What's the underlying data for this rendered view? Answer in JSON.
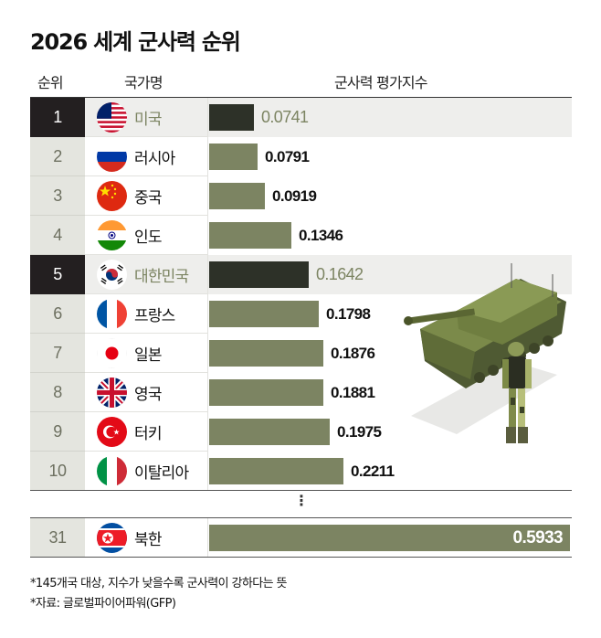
{
  "title": "2026 세계 군사력 순위",
  "headers": {
    "rank": "순위",
    "country": "국가명",
    "index": "군사력 평가지수"
  },
  "colors": {
    "bar": "#7c8462",
    "bar_highlight": "#2d3128",
    "rank_bg": "#e4e5df",
    "rank_highlight_bg": "#231f20",
    "row_highlight_bg": "#eeeeec",
    "value_highlight": "#7c8462"
  },
  "rows": [
    {
      "rank": "1",
      "country": "미국",
      "flag": "usa-flag",
      "value": 0.0741,
      "label": "0.0741",
      "highlight": true
    },
    {
      "rank": "2",
      "country": "러시아",
      "flag": "russia-flag",
      "value": 0.0791,
      "label": "0.0791",
      "highlight": false
    },
    {
      "rank": "3",
      "country": "중국",
      "flag": "china-flag",
      "value": 0.0919,
      "label": "0.0919",
      "highlight": false
    },
    {
      "rank": "4",
      "country": "인도",
      "flag": "india-flag",
      "value": 0.1346,
      "label": "0.1346",
      "highlight": false
    },
    {
      "rank": "5",
      "country": "대한민국",
      "flag": "south-korea-flag",
      "value": 0.1642,
      "label": "0.1642",
      "highlight": true
    },
    {
      "rank": "6",
      "country": "프랑스",
      "flag": "france-flag",
      "value": 0.1798,
      "label": "0.1798",
      "highlight": false
    },
    {
      "rank": "7",
      "country": "일본",
      "flag": "japan-flag",
      "value": 0.1876,
      "label": "0.1876",
      "highlight": false
    },
    {
      "rank": "8",
      "country": "영국",
      "flag": "uk-flag",
      "value": 0.1881,
      "label": "0.1881",
      "highlight": false
    },
    {
      "rank": "9",
      "country": "터키",
      "flag": "turkey-flag",
      "value": 0.1975,
      "label": "0.1975",
      "highlight": false
    },
    {
      "rank": "10",
      "country": "이탈리아",
      "flag": "italy-flag",
      "value": 0.2211,
      "label": "0.2211",
      "highlight": false
    }
  ],
  "ellipsis": "⋮",
  "north_korea": {
    "rank": "31",
    "country": "북한",
    "flag": "north-korea-flag",
    "value": 0.5933,
    "label": "0.5933"
  },
  "notes": [
    "*145개국 대상, 지수가 낮을수록 군사력이 강하다는 뜻",
    "*자료: 글로벌파이어파워(GFP)"
  ],
  "illustration": "tank-and-soldier-illustration",
  "chart_data": {
    "type": "bar",
    "orientation": "horizontal",
    "title": "2026 세계 군사력 순위",
    "xlabel": "군사력 평가지수",
    "ylabel": "국가명",
    "categories": [
      "미국",
      "러시아",
      "중국",
      "인도",
      "대한민국",
      "프랑스",
      "일본",
      "영국",
      "터키",
      "이탈리아",
      "북한"
    ],
    "ranks": [
      1,
      2,
      3,
      4,
      5,
      6,
      7,
      8,
      9,
      10,
      31
    ],
    "values": [
      0.0741,
      0.0791,
      0.0919,
      0.1346,
      0.1642,
      0.1798,
      0.1876,
      0.1881,
      0.1975,
      0.2211,
      0.5933
    ],
    "highlighted": [
      "미국",
      "대한민국"
    ],
    "xlim": [
      0,
      0.6
    ],
    "grid": false,
    "legend": "none",
    "annotations": [
      "*145개국 대상, 지수가 낮을수록 군사력이 강하다는 뜻",
      "*자료: 글로벌파이어파워(GFP)"
    ]
  }
}
